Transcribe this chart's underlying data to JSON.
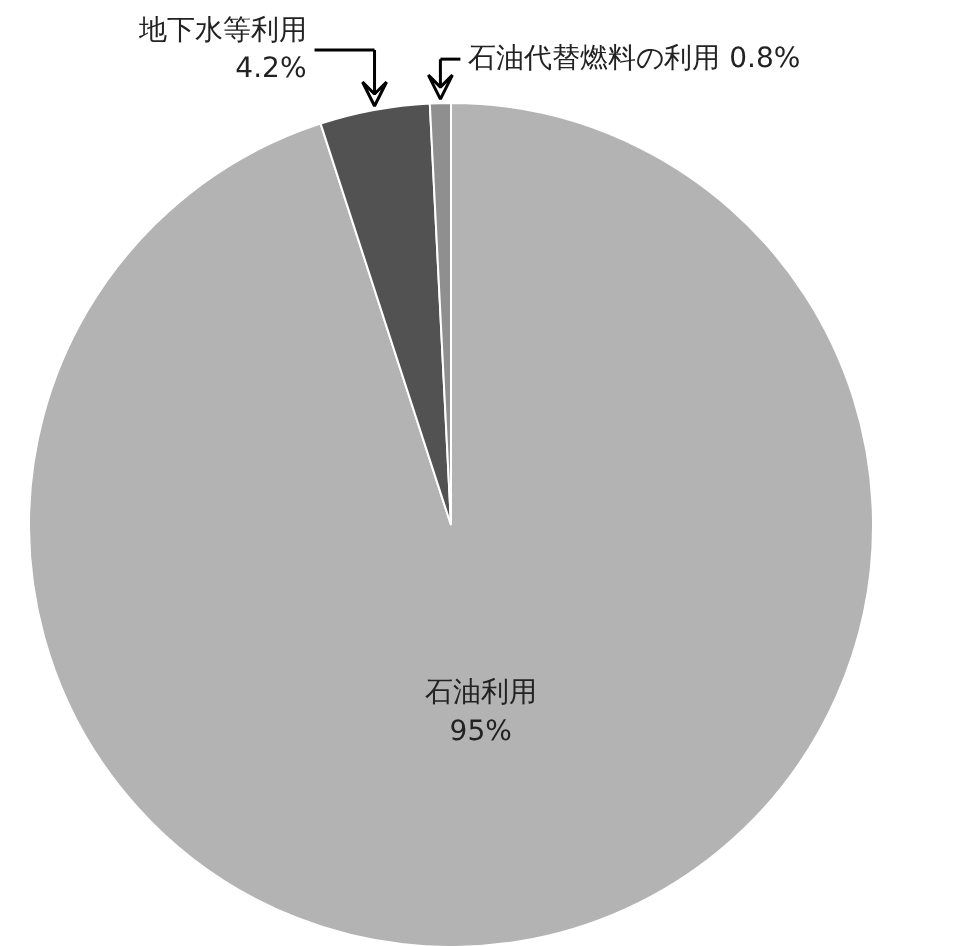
{
  "chart_data": {
    "type": "pie",
    "categories": [
      "石油利用",
      "地下水等利用",
      "石油代替燃料の利用"
    ],
    "values": [
      95,
      4.2,
      0.8
    ],
    "colors": [
      "#b3b3b3",
      "#525252",
      "#8f8f8f"
    ],
    "value_labels": [
      "95%",
      "4.2%",
      "0.8%"
    ]
  }
}
